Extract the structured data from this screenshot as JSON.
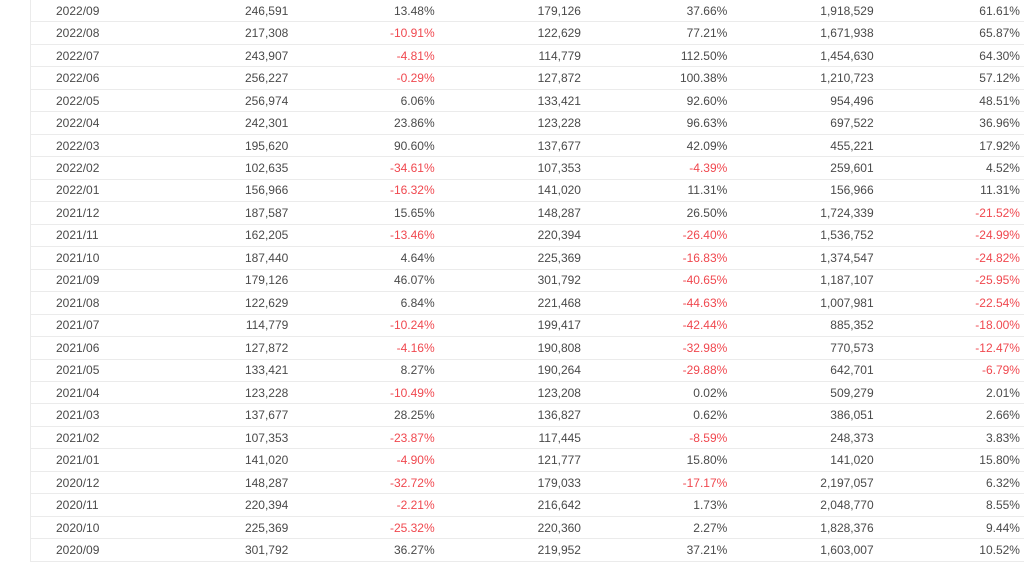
{
  "theme": {
    "background": "#ffffff",
    "text": "#4a4a4a",
    "negative": "#f0484f",
    "border": "#ebebeb"
  },
  "table": {
    "rows": [
      [
        "2022/09",
        "246,591",
        "13.48%",
        "179,126",
        "37.66%",
        "1,918,529",
        "61.61%"
      ],
      [
        "2022/08",
        "217,308",
        "-10.91%",
        "122,629",
        "77.21%",
        "1,671,938",
        "65.87%"
      ],
      [
        "2022/07",
        "243,907",
        "-4.81%",
        "114,779",
        "112.50%",
        "1,454,630",
        "64.30%"
      ],
      [
        "2022/06",
        "256,227",
        "-0.29%",
        "127,872",
        "100.38%",
        "1,210,723",
        "57.12%"
      ],
      [
        "2022/05",
        "256,974",
        "6.06%",
        "133,421",
        "92.60%",
        "954,496",
        "48.51%"
      ],
      [
        "2022/04",
        "242,301",
        "23.86%",
        "123,228",
        "96.63%",
        "697,522",
        "36.96%"
      ],
      [
        "2022/03",
        "195,620",
        "90.60%",
        "137,677",
        "42.09%",
        "455,221",
        "17.92%"
      ],
      [
        "2022/02",
        "102,635",
        "-34.61%",
        "107,353",
        "-4.39%",
        "259,601",
        "4.52%"
      ],
      [
        "2022/01",
        "156,966",
        "-16.32%",
        "141,020",
        "11.31%",
        "156,966",
        "11.31%"
      ],
      [
        "2021/12",
        "187,587",
        "15.65%",
        "148,287",
        "26.50%",
        "1,724,339",
        "-21.52%"
      ],
      [
        "2021/11",
        "162,205",
        "-13.46%",
        "220,394",
        "-26.40%",
        "1,536,752",
        "-24.99%"
      ],
      [
        "2021/10",
        "187,440",
        "4.64%",
        "225,369",
        "-16.83%",
        "1,374,547",
        "-24.82%"
      ],
      [
        "2021/09",
        "179,126",
        "46.07%",
        "301,792",
        "-40.65%",
        "1,187,107",
        "-25.95%"
      ],
      [
        "2021/08",
        "122,629",
        "6.84%",
        "221,468",
        "-44.63%",
        "1,007,981",
        "-22.54%"
      ],
      [
        "2021/07",
        "114,779",
        "-10.24%",
        "199,417",
        "-42.44%",
        "885,352",
        "-18.00%"
      ],
      [
        "2021/06",
        "127,872",
        "-4.16%",
        "190,808",
        "-32.98%",
        "770,573",
        "-12.47%"
      ],
      [
        "2021/05",
        "133,421",
        "8.27%",
        "190,264",
        "-29.88%",
        "642,701",
        "-6.79%"
      ],
      [
        "2021/04",
        "123,228",
        "-10.49%",
        "123,208",
        "0.02%",
        "509,279",
        "2.01%"
      ],
      [
        "2021/03",
        "137,677",
        "28.25%",
        "136,827",
        "0.62%",
        "386,051",
        "2.66%"
      ],
      [
        "2021/02",
        "107,353",
        "-23.87%",
        "117,445",
        "-8.59%",
        "248,373",
        "3.83%"
      ],
      [
        "2021/01",
        "141,020",
        "-4.90%",
        "121,777",
        "15.80%",
        "141,020",
        "15.80%"
      ],
      [
        "2020/12",
        "148,287",
        "-32.72%",
        "179,033",
        "-17.17%",
        "2,197,057",
        "6.32%"
      ],
      [
        "2020/11",
        "220,394",
        "-2.21%",
        "216,642",
        "1.73%",
        "2,048,770",
        "8.55%"
      ],
      [
        "2020/10",
        "225,369",
        "-25.32%",
        "220,360",
        "2.27%",
        "1,828,376",
        "9.44%"
      ],
      [
        "2020/09",
        "301,792",
        "36.27%",
        "219,952",
        "37.21%",
        "1,603,007",
        "10.52%"
      ]
    ]
  }
}
